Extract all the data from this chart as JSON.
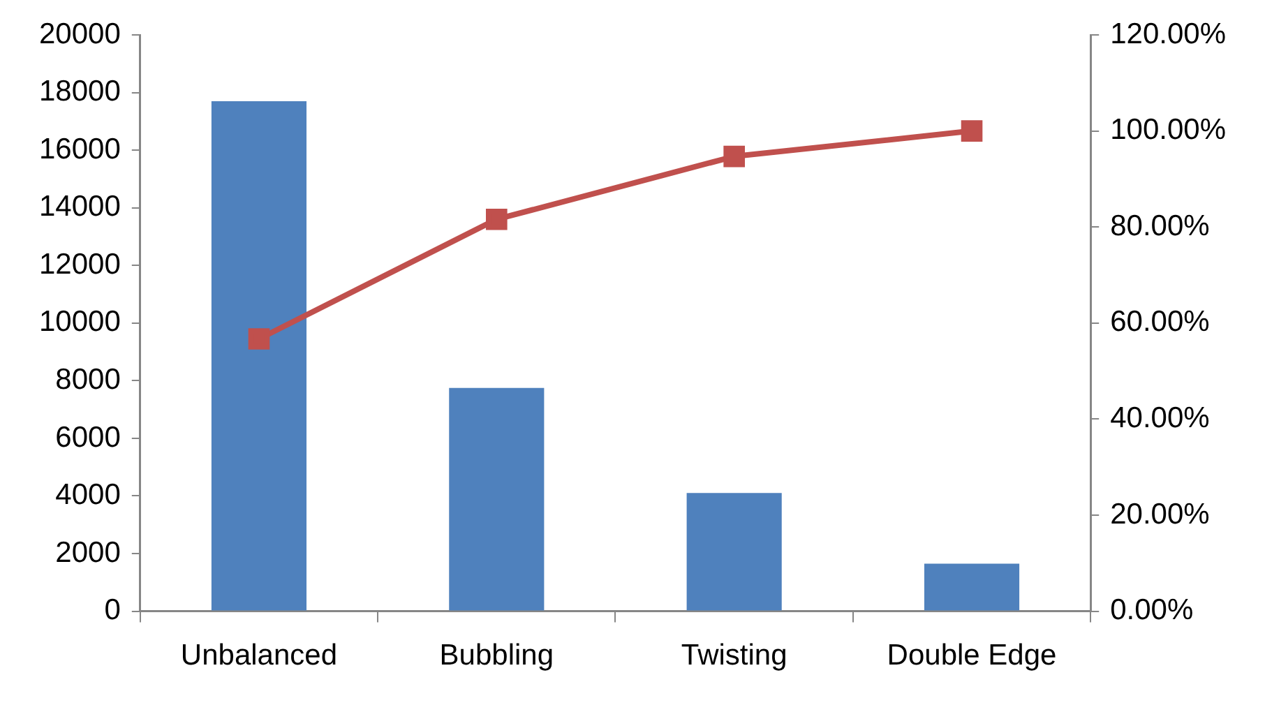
{
  "chart_data": {
    "type": "bar",
    "categories": [
      "Unbalanced",
      "Bubbling",
      "Twisting",
      "Double Edge"
    ],
    "series": [
      {
        "color": "#4f81bd",
        "values": [
          17700,
          7750,
          4100,
          1650
        ]
      },
      {
        "type": "line",
        "axis": "y2",
        "color": "#c0504d",
        "values": [
          56.7,
          81.6,
          94.7,
          100
        ]
      }
    ],
    "marker": "square",
    "grid": false,
    "legend": false,
    "ylim": [
      0,
      20000
    ],
    "yticks": [
      0,
      2000,
      4000,
      6000,
      8000,
      10000,
      12000,
      14000,
      16000,
      18000,
      20000
    ],
    "y2lim": [
      0,
      120
    ],
    "y2ticks": [
      {
        "value": 0,
        "label": "0.00%"
      },
      {
        "value": 20,
        "label": "20.00%"
      },
      {
        "value": 40,
        "label": "40.00%"
      },
      {
        "value": 60,
        "label": "60.00%"
      },
      {
        "value": 80,
        "label": "80.00%"
      },
      {
        "value": 100,
        "label": "100.00%"
      },
      {
        "value": 120,
        "label": "120.00%"
      }
    ]
  }
}
